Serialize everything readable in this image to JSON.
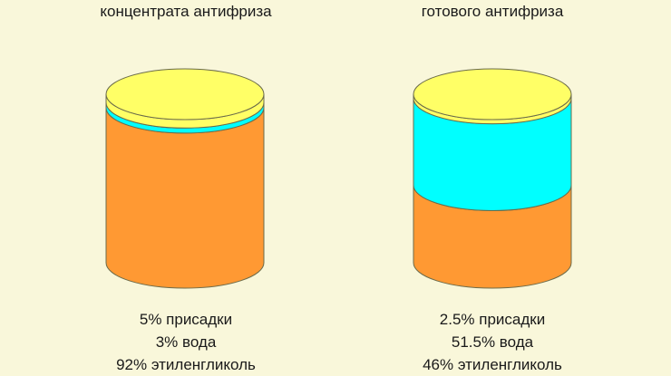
{
  "colors": {
    "background": "#f9f7da",
    "additives": "#ffff66",
    "water": "#00ffff",
    "ethylene_glycol": "#ff9933",
    "outline": "#6b6b4a"
  },
  "chart_data": [
    {
      "type": "stacked-cylinder",
      "title": "концентрата антифриза",
      "layers_bottom_to_top": [
        {
          "name": "этиленгликоль",
          "percent": 92,
          "color": "#ff9933"
        },
        {
          "name": "вода",
          "percent": 3,
          "color": "#00ffff"
        },
        {
          "name": "присадки",
          "percent": 5,
          "color": "#ffff66"
        }
      ],
      "labels": [
        "5% присадки",
        "3% вода",
        "92% этиленгликоль"
      ]
    },
    {
      "type": "stacked-cylinder",
      "title": "готового антифриза",
      "layers_bottom_to_top": [
        {
          "name": "этиленгликоль",
          "percent": 46,
          "color": "#ff9933"
        },
        {
          "name": "вода",
          "percent": 51.5,
          "color": "#00ffff"
        },
        {
          "name": "присадки",
          "percent": 2.5,
          "color": "#ffff66"
        }
      ],
      "labels": [
        "2.5% присадки",
        "51.5% вода",
        "46% этиленгликоль"
      ]
    }
  ]
}
